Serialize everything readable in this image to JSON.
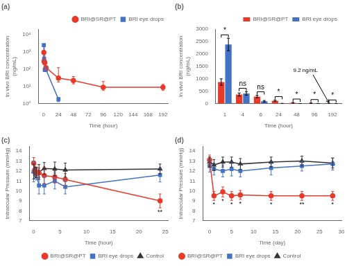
{
  "chart_data": [
    {
      "type": "line",
      "title": "(a)",
      "xlabel": "Time (hour)",
      "ylabel": "In vivo BRI concentration\n(ng/mL)",
      "log": "y",
      "grid": false,
      "legend": "upper right",
      "xlim": [
        -8,
        200
      ],
      "xticks": [
        0,
        24,
        48,
        72,
        96,
        120,
        144,
        168,
        192
      ],
      "ylim": [
        1,
        20000
      ],
      "yticks": [
        {
          "value": 1,
          "label": "10⁰"
        },
        {
          "value": 10,
          "label": "10¹"
        },
        {
          "value": 100,
          "label": "10²"
        },
        {
          "value": 1000,
          "label": "10³"
        },
        {
          "value": 10000,
          "label": "10⁴"
        }
      ],
      "series": [
        {
          "name": "BRI@SR@PT",
          "color": "#E8392A",
          "marker": "circle",
          "x": [
            0.5,
            1,
            2,
            4,
            24,
            48,
            96,
            192
          ],
          "values": [
            900,
            270,
            230,
            120,
            30,
            22,
            9,
            9
          ],
          "errors_minus": [
            200,
            80,
            80,
            40,
            12,
            8,
            3,
            3
          ],
          "errors_plus": [
            300,
            150,
            100,
            100,
            90,
            15,
            10,
            4
          ]
        },
        {
          "name": "BRI eye drops",
          "color": "#4472C4",
          "marker": "square",
          "x": [
            0.5,
            1,
            2,
            4,
            24
          ],
          "values": [
            2400,
            400,
            90,
            90,
            1.8
          ],
          "errors_minus": [
            300,
            100,
            20,
            15,
            0.5
          ],
          "errors_plus": [
            400,
            200,
            30,
            30,
            0.5
          ]
        }
      ]
    },
    {
      "type": "bar",
      "title": "(b)",
      "xlabel": "Time (hour)",
      "ylabel": "In vivo BRI concentration\n(ng/mL)",
      "grid": false,
      "legend": "upper right",
      "categories": [
        "1",
        "4",
        "6",
        "24",
        "48",
        "96",
        "192"
      ],
      "ylim": [
        0,
        3000
      ],
      "yticks": [
        0,
        500,
        1000,
        1500,
        2000,
        2500,
        3000
      ],
      "series": [
        {
          "name": "BRI@SR@PT",
          "color": "#E8392A",
          "values": [
            870,
            370,
            290,
            120,
            35,
            20,
            9.2
          ],
          "errors": [
            130,
            60,
            50,
            30,
            15,
            10,
            3
          ]
        },
        {
          "name": "BRI eye drops",
          "color": "#4472C4",
          "values": [
            2380,
            410,
            100,
            10,
            5,
            5,
            5
          ],
          "errors": [
            250,
            70,
            30,
            5,
            3,
            3,
            3
          ]
        }
      ],
      "annotations": [
        {
          "x": "1",
          "text": "*"
        },
        {
          "x": "4",
          "text": "ns"
        },
        {
          "x": "6",
          "text": "ns"
        },
        {
          "x": "24",
          "text": "*"
        },
        {
          "x": "48",
          "text": "*"
        },
        {
          "x": "96",
          "text": "*"
        },
        {
          "x": "192",
          "text": "*"
        },
        {
          "x": "192",
          "series": "BRI@SR@PT",
          "text": "9.2 ng/mL"
        }
      ]
    },
    {
      "type": "line",
      "title": "(c)",
      "xlabel": "Time (hour)",
      "ylabel": "Intraocular Pressure (mmHg)",
      "grid": false,
      "legend": "lower right",
      "xlim": [
        -0.8,
        25.5
      ],
      "xticks": [
        0,
        5,
        10,
        15,
        20,
        25
      ],
      "ylim": [
        7,
        14.5
      ],
      "yticks": [
        7,
        8,
        9,
        10,
        11,
        12,
        13,
        14
      ],
      "x": [
        0,
        0.25,
        0.5,
        1,
        2,
        4,
        6,
        24
      ],
      "series": [
        {
          "name": "BRI@SR@PT",
          "color": "#E8392A",
          "marker": "circle",
          "values": [
            12.8,
            12.1,
            11.9,
            11.8,
            11.55,
            11.4,
            11.15,
            9.0
          ],
          "errors": [
            0.55,
            0.55,
            0.5,
            0.5,
            0.8,
            0.6,
            0.6,
            0.7
          ]
        },
        {
          "name": "BRI eye drops",
          "color": "#4472C4",
          "marker": "square",
          "values": [
            11.95,
            11.75,
            11.7,
            10.55,
            10.55,
            11.0,
            10.4,
            11.6
          ],
          "errors": [
            1.05,
            0.5,
            0.6,
            0.85,
            0.85,
            0.8,
            0.7,
            0.7
          ]
        },
        {
          "name": "Control",
          "color": "#333333",
          "marker": "triangle",
          "values": [
            11.95,
            11.9,
            11.85,
            11.9,
            12.25,
            12.2,
            12.1,
            12.2
          ],
          "errors": [
            0.75,
            0.5,
            0.5,
            0.75,
            0.6,
            0.7,
            0.7,
            0.5
          ]
        }
      ],
      "annotations": [
        {
          "x": 24,
          "series": "BRI@SR@PT",
          "text": "**"
        }
      ]
    },
    {
      "type": "line",
      "title": "(d)",
      "xlabel": "Time (day)",
      "ylabel": "Intraocular Pressure (mmHg)",
      "grid": false,
      "legend": "lower left",
      "xlim": [
        -1.5,
        30
      ],
      "xticks": [
        0,
        5,
        10,
        15,
        20,
        25,
        30
      ],
      "ylim": [
        7,
        14.5
      ],
      "yticks": [
        7,
        8,
        9,
        10,
        11,
        12,
        13,
        14
      ],
      "x": [
        0,
        1,
        3,
        5,
        7,
        14,
        21,
        28
      ],
      "series": [
        {
          "name": "BRI@SR@PT",
          "color": "#E8392A",
          "marker": "circle",
          "values": [
            13.1,
            9.5,
            9.9,
            9.5,
            9.6,
            9.5,
            9.5,
            9.5
          ],
          "errors": [
            0.5,
            0.45,
            0.5,
            0.45,
            0.45,
            0.45,
            0.45,
            0.45
          ]
        },
        {
          "name": "BRI eye drops",
          "color": "#4472C4",
          "marker": "square",
          "values": [
            12.5,
            12.2,
            12.0,
            12.2,
            12.0,
            12.3,
            12.5,
            12.7
          ],
          "errors": [
            0.6,
            0.6,
            0.6,
            0.7,
            0.6,
            0.7,
            0.5,
            0.6
          ]
        },
        {
          "name": "Control",
          "color": "#333333",
          "marker": "triangle",
          "values": [
            12.9,
            12.6,
            12.9,
            12.9,
            12.7,
            12.9,
            13.0,
            12.8
          ],
          "errors": [
            0.5,
            0.55,
            0.5,
            0.5,
            0.55,
            0.5,
            0.5,
            0.5
          ]
        }
      ],
      "annotations": [
        {
          "x": 1,
          "series": "BRI@SR@PT",
          "text": "*"
        },
        {
          "x": 3,
          "series": "BRI@SR@PT",
          "text": "*"
        },
        {
          "x": 5,
          "series": "BRI@SR@PT",
          "text": "*"
        },
        {
          "x": 7,
          "series": "BRI@SR@PT",
          "text": "*"
        },
        {
          "x": 14,
          "series": "BRI@SR@PT",
          "text": "*"
        },
        {
          "x": 21,
          "series": "BRI@SR@PT",
          "text": "**"
        },
        {
          "x": 28,
          "series": "BRI@SR@PT",
          "text": "*"
        }
      ]
    }
  ]
}
